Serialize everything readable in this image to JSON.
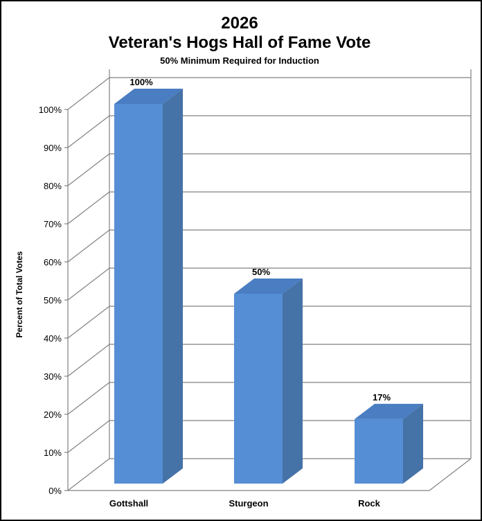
{
  "chart_data": {
    "type": "bar",
    "title": "2026",
    "title_line2": "Veteran's Hogs Hall of Fame Vote",
    "subtitle": "50% Minimum Required for Induction",
    "xlabel": "",
    "ylabel": "Percent of Total Votes",
    "categories": [
      "Gottshall",
      "Sturgeon",
      "Rock"
    ],
    "values": [
      100,
      50,
      17
    ],
    "data_labels": [
      "100%",
      "50%",
      "17%"
    ],
    "ylim": [
      0,
      100
    ],
    "yticks": [
      0,
      10,
      20,
      30,
      40,
      50,
      60,
      70,
      80,
      90,
      100
    ],
    "ytick_labels": [
      "0%",
      "10%",
      "20%",
      "30%",
      "40%",
      "50%",
      "60%",
      "70%",
      "80%",
      "90%",
      "100%"
    ],
    "grid": true,
    "style": "3d-column",
    "colors": {
      "bar_front": "#558ed5",
      "bar_side": "#4572a7",
      "bar_top": "#4a7dc2",
      "grid": "#808080"
    }
  }
}
